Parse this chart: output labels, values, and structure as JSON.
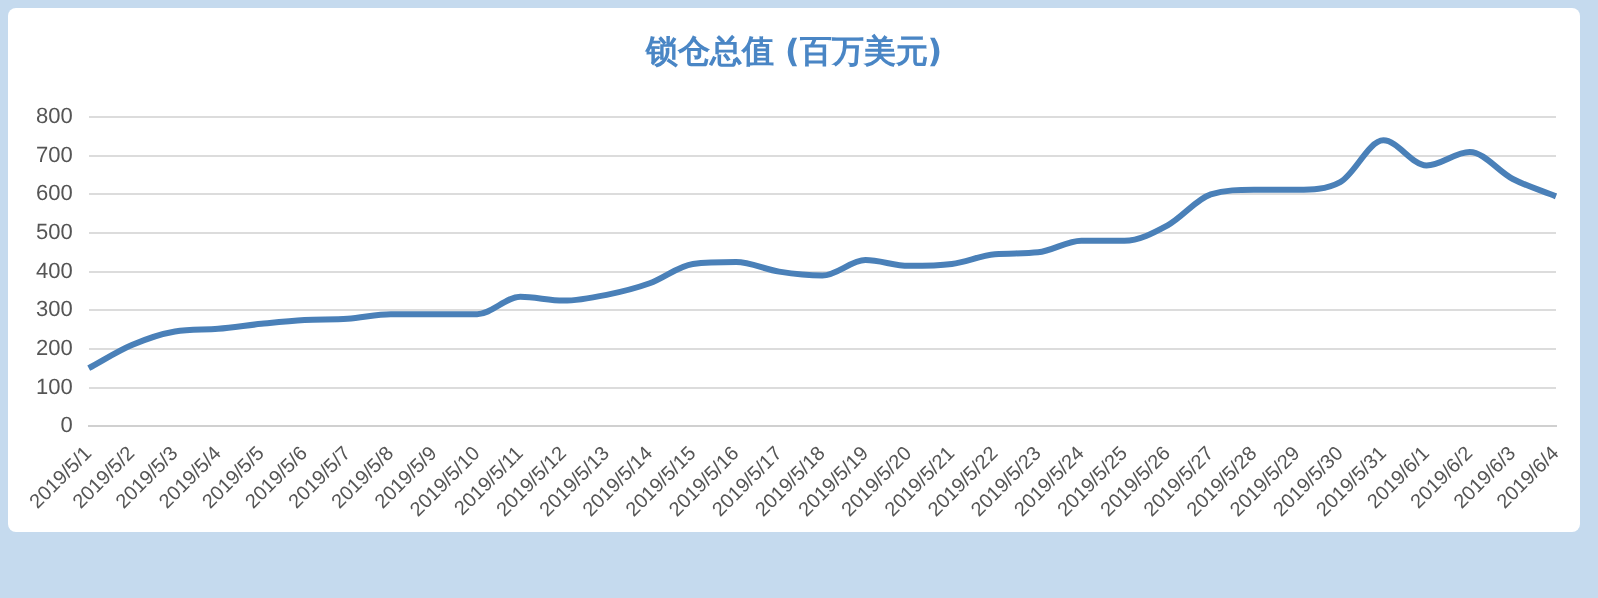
{
  "chart_data": {
    "type": "line",
    "title": "锁仓总值 (百万美元)",
    "categories": [
      "2019/5/1",
      "2019/5/2",
      "2019/5/3",
      "2019/5/4",
      "2019/5/5",
      "2019/5/6",
      "2019/5/7",
      "2019/5/8",
      "2019/5/9",
      "2019/5/10",
      "2019/5/11",
      "2019/5/12",
      "2019/5/13",
      "2019/5/14",
      "2019/5/15",
      "2019/5/16",
      "2019/5/17",
      "2019/5/18",
      "2019/5/19",
      "2019/5/20",
      "2019/5/21",
      "2019/5/22",
      "2019/5/23",
      "2019/5/24",
      "2019/5/25",
      "2019/5/26",
      "2019/5/27",
      "2019/5/28",
      "2019/5/29",
      "2019/5/30",
      "2019/5/31",
      "2019/6/1",
      "2019/6/2",
      "2019/6/3",
      "2019/6/4"
    ],
    "values": [
      150,
      210,
      245,
      252,
      265,
      275,
      278,
      290,
      290,
      290,
      335,
      325,
      340,
      370,
      420,
      425,
      400,
      390,
      430,
      415,
      420,
      445,
      450,
      480,
      480,
      520,
      600,
      612,
      612,
      632,
      740,
      675,
      710,
      640,
      595
    ],
    "color": "#4a80b8",
    "ylim": [
      0,
      800
    ],
    "yticks": [
      0,
      100,
      200,
      300,
      400,
      500,
      600,
      700,
      800
    ],
    "grid": "y",
    "legend": false,
    "marker": "none",
    "line_style": "solid"
  }
}
